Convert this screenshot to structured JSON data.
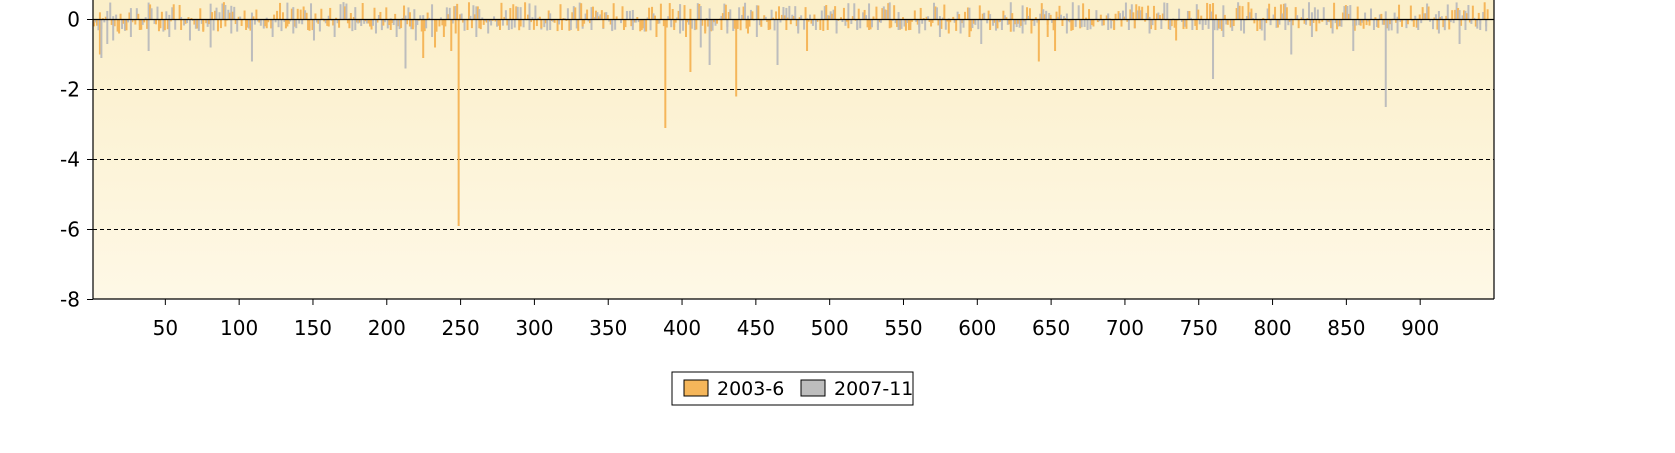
{
  "chart_data": {
    "type": "bar",
    "title": "",
    "xlabel": "",
    "ylabel": "",
    "xlim": [
      1,
      950
    ],
    "ylim": [
      -8,
      0.6
    ],
    "x_ticks": [
      50,
      100,
      150,
      200,
      250,
      300,
      350,
      400,
      450,
      500,
      550,
      600,
      650,
      700,
      750,
      800,
      850,
      900
    ],
    "y_ticks": [
      0,
      -2,
      -4,
      -6,
      -8
    ],
    "y_tick_labels": [
      "0",
      "-2",
      "-4",
      "-6",
      "-8"
    ],
    "grid": "dashed horizontal lines at -2, -4, -6",
    "legend": {
      "position": "bottom-center"
    },
    "colors": {
      "series_2003_6": "#F5B65A",
      "series_2007_11": "#BDBDBD",
      "plot_top": "#FBEFC9",
      "plot_bottom": "#FEF8E6"
    },
    "series": [
      {
        "name": "2003-6",
        "color": "#F5B65A",
        "points": [
          [
            5,
            -1.0
          ],
          [
            18,
            -0.4
          ],
          [
            32,
            -0.3
          ],
          [
            46,
            -0.25
          ],
          [
            60,
            -0.3
          ],
          [
            75,
            -0.35
          ],
          [
            90,
            -0.2
          ],
          [
            104,
            -0.3
          ],
          [
            118,
            -0.25
          ],
          [
            132,
            -0.2
          ],
          [
            146,
            -0.3
          ],
          [
            160,
            -0.2
          ],
          [
            174,
            -0.25
          ],
          [
            188,
            -0.2
          ],
          [
            202,
            -0.3
          ],
          [
            215,
            -0.2
          ],
          [
            224,
            -1.1
          ],
          [
            232,
            -0.8
          ],
          [
            238,
            -0.5
          ],
          [
            243,
            -0.9
          ],
          [
            246,
            -0.4
          ],
          [
            248,
            -5.9
          ],
          [
            254,
            -0.3
          ],
          [
            262,
            -0.25
          ],
          [
            276,
            -0.3
          ],
          [
            290,
            -0.2
          ],
          [
            304,
            -0.25
          ],
          [
            318,
            -0.3
          ],
          [
            332,
            -0.2
          ],
          [
            346,
            -0.25
          ],
          [
            360,
            -0.3
          ],
          [
            372,
            -0.3
          ],
          [
            382,
            -0.5
          ],
          [
            388,
            -3.1
          ],
          [
            394,
            -0.3
          ],
          [
            402,
            -0.5
          ],
          [
            405,
            -1.5
          ],
          [
            415,
            -0.4
          ],
          [
            426,
            -0.3
          ],
          [
            436,
            -2.2
          ],
          [
            444,
            -0.4
          ],
          [
            458,
            -0.3
          ],
          [
            470,
            -0.3
          ],
          [
            484,
            -0.9
          ],
          [
            498,
            -0.3
          ],
          [
            512,
            -0.25
          ],
          [
            526,
            -0.3
          ],
          [
            540,
            -0.25
          ],
          [
            554,
            -0.3
          ],
          [
            568,
            -0.2
          ],
          [
            580,
            -0.4
          ],
          [
            594,
            -0.5
          ],
          [
            608,
            -0.3
          ],
          [
            622,
            -0.35
          ],
          [
            636,
            -0.4
          ],
          [
            641,
            -1.2
          ],
          [
            647,
            -0.5
          ],
          [
            652,
            -0.9
          ],
          [
            664,
            -0.3
          ],
          [
            678,
            -0.2
          ],
          [
            692,
            -0.3
          ],
          [
            706,
            -0.25
          ],
          [
            720,
            -0.3
          ],
          [
            734,
            -0.6
          ],
          [
            748,
            -0.3
          ]
        ]
      },
      {
        "name": "2007-11",
        "color": "#BDBDBD",
        "points": [
          [
            6,
            -1.1
          ],
          [
            10,
            -0.7
          ],
          [
            14,
            -0.6
          ],
          [
            26,
            -0.5
          ],
          [
            38,
            -0.9
          ],
          [
            52,
            -0.5
          ],
          [
            66,
            -0.6
          ],
          [
            80,
            -0.8
          ],
          [
            94,
            -0.4
          ],
          [
            108,
            -1.2
          ],
          [
            122,
            -0.5
          ],
          [
            136,
            -0.4
          ],
          [
            150,
            -0.6
          ],
          [
            164,
            -0.5
          ],
          [
            178,
            -0.3
          ],
          [
            192,
            -0.4
          ],
          [
            206,
            -0.5
          ],
          [
            212,
            -1.4
          ],
          [
            219,
            -0.6
          ],
          [
            230,
            -0.5
          ],
          [
            260,
            -0.5
          ],
          [
            268,
            -0.4
          ],
          [
            282,
            -0.3
          ],
          [
            296,
            -0.3
          ],
          [
            310,
            -0.3
          ],
          [
            324,
            -0.3
          ],
          [
            338,
            -0.3
          ],
          [
            352,
            -0.3
          ],
          [
            366,
            -0.3
          ],
          [
            398,
            -0.4
          ],
          [
            412,
            -0.8
          ],
          [
            418,
            -1.3
          ],
          [
            430,
            -0.4
          ],
          [
            450,
            -0.5
          ],
          [
            464,
            -1.3
          ],
          [
            478,
            -0.4
          ],
          [
            490,
            -0.3
          ],
          [
            504,
            -0.4
          ],
          [
            518,
            -0.3
          ],
          [
            532,
            -0.3
          ],
          [
            546,
            -0.3
          ],
          [
            560,
            -0.4
          ],
          [
            574,
            -0.5
          ],
          [
            588,
            -0.4
          ],
          [
            602,
            -0.7
          ],
          [
            616,
            -0.3
          ],
          [
            630,
            -0.4
          ],
          [
            660,
            -0.4
          ],
          [
            674,
            -0.3
          ],
          [
            688,
            -0.3
          ],
          [
            702,
            -0.3
          ],
          [
            716,
            -0.4
          ],
          [
            730,
            -0.3
          ],
          [
            745,
            -0.3
          ],
          [
            752,
            -0.3
          ],
          [
            759,
            -1.7
          ],
          [
            766,
            -0.5
          ],
          [
            780,
            -0.4
          ],
          [
            794,
            -0.6
          ],
          [
            808,
            -0.3
          ],
          [
            812,
            -1.0
          ],
          [
            826,
            -0.5
          ],
          [
            840,
            -0.4
          ],
          [
            854,
            -0.9
          ],
          [
            868,
            -0.3
          ],
          [
            876,
            -2.5
          ],
          [
            884,
            -0.4
          ],
          [
            898,
            -0.3
          ],
          [
            912,
            -0.4
          ],
          [
            926,
            -0.7
          ],
          [
            930,
            -0.3
          ],
          [
            940,
            -0.3
          ],
          [
            944,
            -0.2
          ]
        ]
      }
    ]
  }
}
